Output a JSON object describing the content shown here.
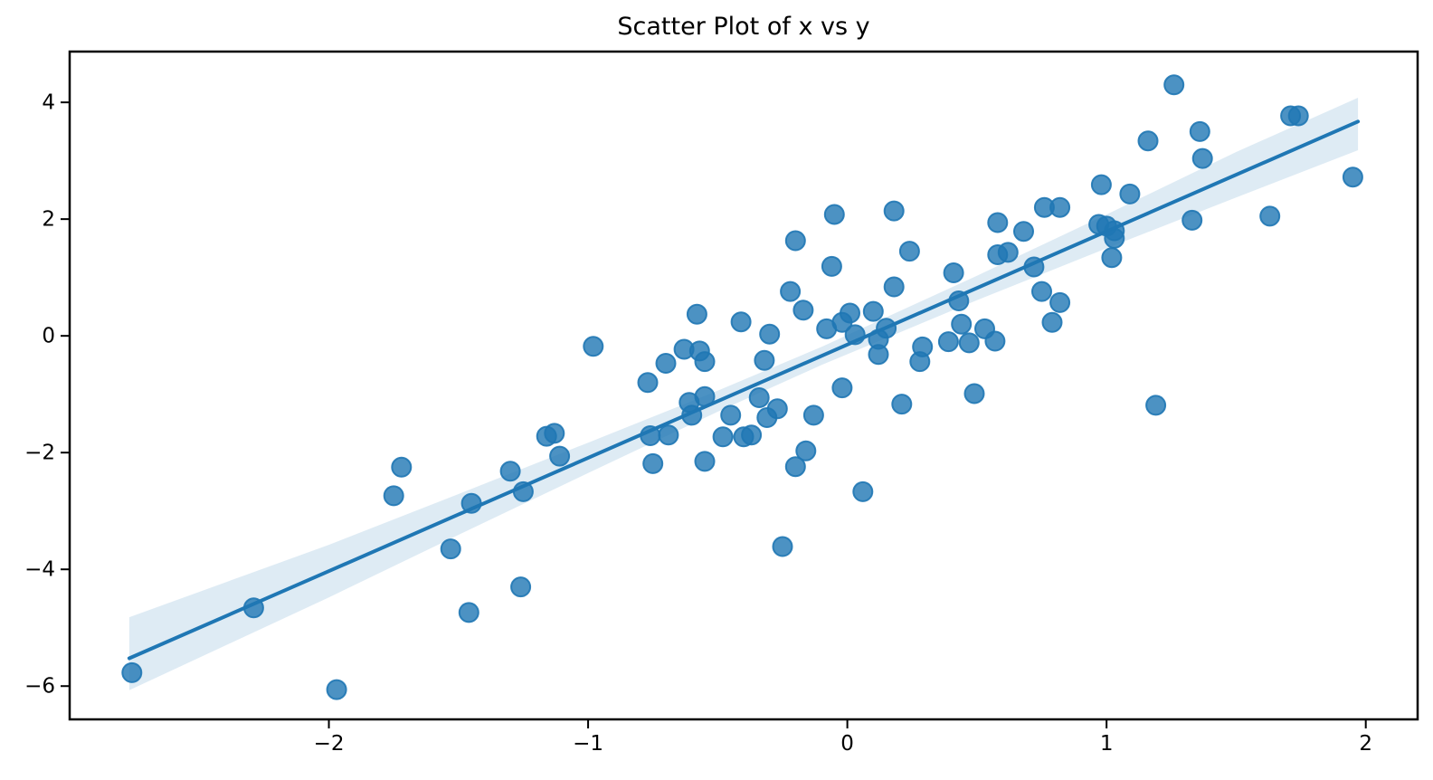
{
  "figure": {
    "background": "#ffffff"
  },
  "chart_data": {
    "type": "scatter",
    "title": "Scatter Plot of x vs y",
    "xlabel": "",
    "ylabel": "",
    "xlim": [
      -3.0,
      2.2
    ],
    "ylim": [
      -6.57,
      4.87
    ],
    "grid": false,
    "legend": "none",
    "x_ticks": [
      {
        "value": -2,
        "label": "−2"
      },
      {
        "value": -1,
        "label": "−1"
      },
      {
        "value": 0,
        "label": "0"
      },
      {
        "value": 1,
        "label": "1"
      },
      {
        "value": 2,
        "label": "2"
      }
    ],
    "y_ticks": [
      {
        "value": 4,
        "label": "4"
      },
      {
        "value": 2,
        "label": "2"
      },
      {
        "value": 0,
        "label": "0"
      },
      {
        "value": -2,
        "label": "−2"
      },
      {
        "value": -4,
        "label": "−4"
      },
      {
        "value": -6,
        "label": "−6"
      }
    ],
    "colors": {
      "point_fill": "#1f77b4",
      "point_alpha": 0.8,
      "point_edge": "#1f77b4",
      "line": "#1f77b4",
      "band": "#1f77b4",
      "band_alpha": 0.15,
      "spine": "#000000",
      "tick": "#000000",
      "title_text": "#000000"
    },
    "marker_radius": 10.5,
    "line_width": 4,
    "points": [
      [
        -2.76,
        -5.77
      ],
      [
        -2.29,
        -4.66
      ],
      [
        -1.97,
        -6.06
      ],
      [
        -1.75,
        -2.74
      ],
      [
        -1.72,
        -2.25
      ],
      [
        -1.53,
        -3.65
      ],
      [
        -1.46,
        -4.74
      ],
      [
        -1.45,
        -2.87
      ],
      [
        -1.3,
        -2.32
      ],
      [
        -1.26,
        -4.3
      ],
      [
        -1.25,
        -2.67
      ],
      [
        -1.16,
        -1.72
      ],
      [
        -1.13,
        -1.67
      ],
      [
        -1.11,
        -2.06
      ],
      [
        -0.98,
        -0.18
      ],
      [
        -0.77,
        -0.8
      ],
      [
        -0.76,
        -1.71
      ],
      [
        -0.75,
        -2.19
      ],
      [
        -0.7,
        -0.47
      ],
      [
        -0.69,
        -1.7
      ],
      [
        -0.63,
        -0.23
      ],
      [
        -0.61,
        -1.14
      ],
      [
        -0.6,
        -1.36
      ],
      [
        -0.58,
        0.37
      ],
      [
        -0.57,
        -0.26
      ],
      [
        -0.55,
        -0.44
      ],
      [
        -0.55,
        -1.04
      ],
      [
        -0.55,
        -2.15
      ],
      [
        -0.48,
        -1.73
      ],
      [
        -0.45,
        -1.36
      ],
      [
        -0.41,
        0.24
      ],
      [
        -0.4,
        -1.73
      ],
      [
        -0.37,
        -1.7
      ],
      [
        -0.34,
        -1.06
      ],
      [
        -0.32,
        -0.42
      ],
      [
        -0.3,
        0.03
      ],
      [
        -0.31,
        -1.4
      ],
      [
        -0.27,
        -1.25
      ],
      [
        -0.25,
        -3.61
      ],
      [
        -0.22,
        0.76
      ],
      [
        -0.2,
        1.63
      ],
      [
        -0.2,
        -2.24
      ],
      [
        -0.17,
        0.44
      ],
      [
        -0.16,
        -1.97
      ],
      [
        -0.13,
        -1.36
      ],
      [
        -0.08,
        0.12
      ],
      [
        -0.06,
        1.19
      ],
      [
        -0.05,
        2.08
      ],
      [
        -0.02,
        0.23
      ],
      [
        -0.02,
        -0.89
      ],
      [
        0.01,
        0.39
      ],
      [
        0.03,
        0.02
      ],
      [
        0.06,
        -2.67
      ],
      [
        0.1,
        0.42
      ],
      [
        0.12,
        -0.06
      ],
      [
        0.12,
        -0.32
      ],
      [
        0.15,
        0.13
      ],
      [
        0.18,
        2.14
      ],
      [
        0.18,
        0.84
      ],
      [
        0.21,
        -1.17
      ],
      [
        0.24,
        1.45
      ],
      [
        0.28,
        -0.44
      ],
      [
        0.29,
        -0.19
      ],
      [
        0.39,
        -0.1
      ],
      [
        0.41,
        1.08
      ],
      [
        0.43,
        0.6
      ],
      [
        0.44,
        0.2
      ],
      [
        0.47,
        -0.12
      ],
      [
        0.49,
        -0.99
      ],
      [
        0.53,
        0.12
      ],
      [
        0.57,
        -0.09
      ],
      [
        0.58,
        1.94
      ],
      [
        0.58,
        1.39
      ],
      [
        0.62,
        1.43
      ],
      [
        0.68,
        1.79
      ],
      [
        0.72,
        1.18
      ],
      [
        0.75,
        0.76
      ],
      [
        0.76,
        2.2
      ],
      [
        0.82,
        2.2
      ],
      [
        0.82,
        0.57
      ],
      [
        0.79,
        0.23
      ],
      [
        0.97,
        1.91
      ],
      [
        1.0,
        1.88
      ],
      [
        1.03,
        1.8
      ],
      [
        1.03,
        1.67
      ],
      [
        0.98,
        2.59
      ],
      [
        1.02,
        1.34
      ],
      [
        1.09,
        2.43
      ],
      [
        1.16,
        3.34
      ],
      [
        1.19,
        -1.19
      ],
      [
        1.26,
        4.3
      ],
      [
        1.33,
        1.98
      ],
      [
        1.36,
        3.5
      ],
      [
        1.37,
        3.04
      ],
      [
        1.63,
        2.05
      ],
      [
        1.71,
        3.77
      ],
      [
        1.74,
        3.77
      ],
      [
        1.95,
        2.72
      ]
    ],
    "regression": {
      "slope": 1.94,
      "intercept": -0.15,
      "x_start": -2.77,
      "x_end": 1.97
    },
    "ci_band": [
      {
        "x": -2.77,
        "lo": -6.07,
        "hi": -4.82
      },
      {
        "x": -2.0,
        "lo": -4.48,
        "hi": -3.58
      },
      {
        "x": -1.5,
        "lo": -3.41,
        "hi": -2.71
      },
      {
        "x": -1.0,
        "lo": -2.35,
        "hi": -1.83
      },
      {
        "x": -0.5,
        "lo": -1.3,
        "hi": -0.94
      },
      {
        "x": -0.1,
        "lo": -0.5,
        "hi": -0.19
      },
      {
        "x": 0.5,
        "lo": 0.61,
        "hi": 1.03
      },
      {
        "x": 1.0,
        "lo": 1.5,
        "hi": 2.08
      },
      {
        "x": 1.5,
        "lo": 2.37,
        "hi": 3.15
      },
      {
        "x": 1.97,
        "lo": 3.18,
        "hi": 4.08
      }
    ]
  }
}
